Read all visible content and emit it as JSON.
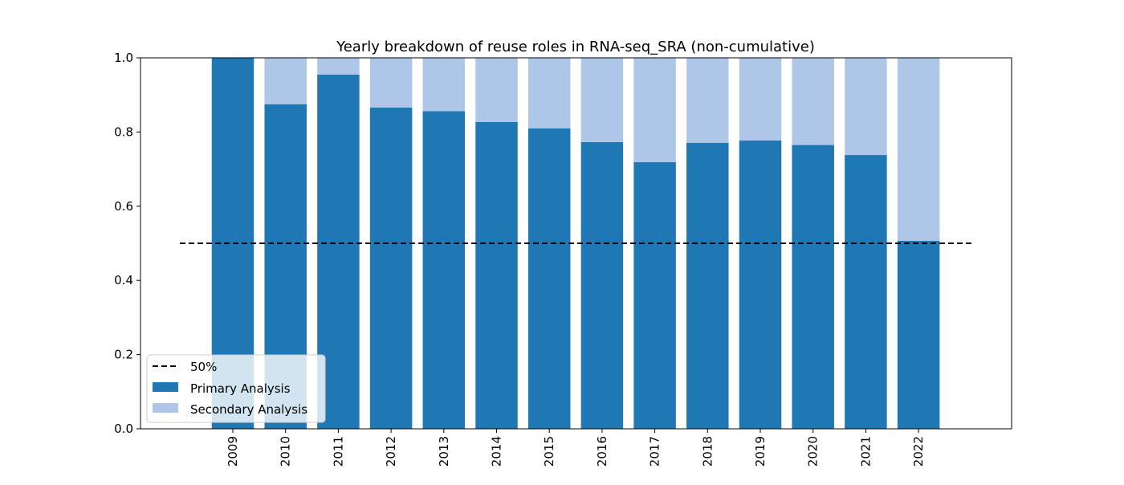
{
  "chart_data": {
    "type": "bar",
    "stacked": true,
    "title": "Yearly breakdown of reuse roles in RNA-seq_SRA (non-cumulative)",
    "xlabel": "",
    "ylabel": "",
    "ylim": [
      0,
      1
    ],
    "yticks": [
      "0.0",
      "0.2",
      "0.4",
      "0.6",
      "0.8",
      "1.0"
    ],
    "categories": [
      "2009",
      "2010",
      "2011",
      "2012",
      "2013",
      "2014",
      "2015",
      "2016",
      "2017",
      "2018",
      "2019",
      "2020",
      "2021",
      "2022"
    ],
    "series": [
      {
        "name": "Primary Analysis",
        "color": "#1f77b4",
        "values": [
          1.0,
          0.875,
          0.955,
          0.866,
          0.856,
          0.827,
          0.81,
          0.773,
          0.719,
          0.771,
          0.777,
          0.765,
          0.738,
          0.507
        ]
      },
      {
        "name": "Secondary Analysis",
        "color": "#aec7e8",
        "values": [
          0.0,
          0.125,
          0.045,
          0.134,
          0.144,
          0.173,
          0.19,
          0.227,
          0.281,
          0.229,
          0.223,
          0.235,
          0.262,
          0.493
        ]
      }
    ],
    "reference_line": {
      "label": "50%",
      "value": 0.5,
      "style": "dashed",
      "color": "#000000"
    },
    "legend": {
      "position": "lower-left"
    },
    "grid": false
  }
}
